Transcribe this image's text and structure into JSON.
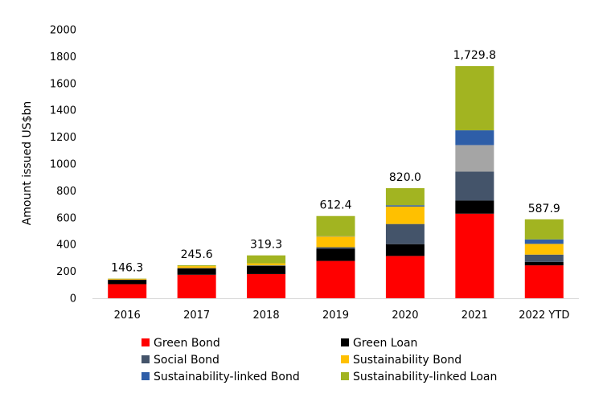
{
  "chart_data": {
    "type": "bar",
    "stacked": true,
    "ylabel": "Amount issued US$bn",
    "ylim": [
      0,
      2000
    ],
    "yticks": [
      0,
      200,
      400,
      600,
      800,
      1000,
      1200,
      1400,
      1600,
      1800,
      2000
    ],
    "categories": [
      "2016",
      "2017",
      "2018",
      "2019",
      "2020",
      "2021",
      "2022 YTD"
    ],
    "totals": [
      "146.3",
      "245.6",
      "319.3",
      "612.4",
      "820.0",
      "1,729.8",
      "587.9"
    ],
    "total_values": [
      146.3,
      245.6,
      319.3,
      612.4,
      820.0,
      1729.8,
      587.9
    ],
    "grid": false,
    "legend_position": "bottom",
    "series": [
      {
        "name": "Green Bond",
        "color": "#ff0000",
        "values": [
          105,
          175,
          180,
          278,
          315,
          630,
          245
        ]
      },
      {
        "name": "Green Loan",
        "color": "#000000",
        "values": [
          32,
          48,
          60,
          92,
          88,
          98,
          25
        ]
      },
      {
        "name": "Social Bond",
        "color": "#44546a",
        "values": [
          2,
          2,
          5,
          10,
          150,
          215,
          55
        ]
      },
      {
        "name": "Sustainability Bond",
        "color": "#ffc000",
        "values": [
          5,
          14,
          15,
          80,
          130,
          0,
          80
        ]
      },
      {
        "name": "Sustainability-linked Bond",
        "color": "#2e5ea8",
        "values": [
          0,
          0,
          0,
          2,
          10,
          110,
          33
        ]
      },
      {
        "name": "Sustainability-linked Loan",
        "color": "#a2b421",
        "values": [
          2.3,
          6.6,
          59.3,
          150.4,
          127,
          478.8,
          149.9
        ]
      },
      {
        "name": "",
        "color": "#a5a5a5",
        "values": [
          0,
          0,
          0,
          0,
          0,
          198,
          0
        ]
      }
    ],
    "stack_order": [
      0,
      1,
      2,
      3,
      6,
      4,
      5
    ]
  }
}
